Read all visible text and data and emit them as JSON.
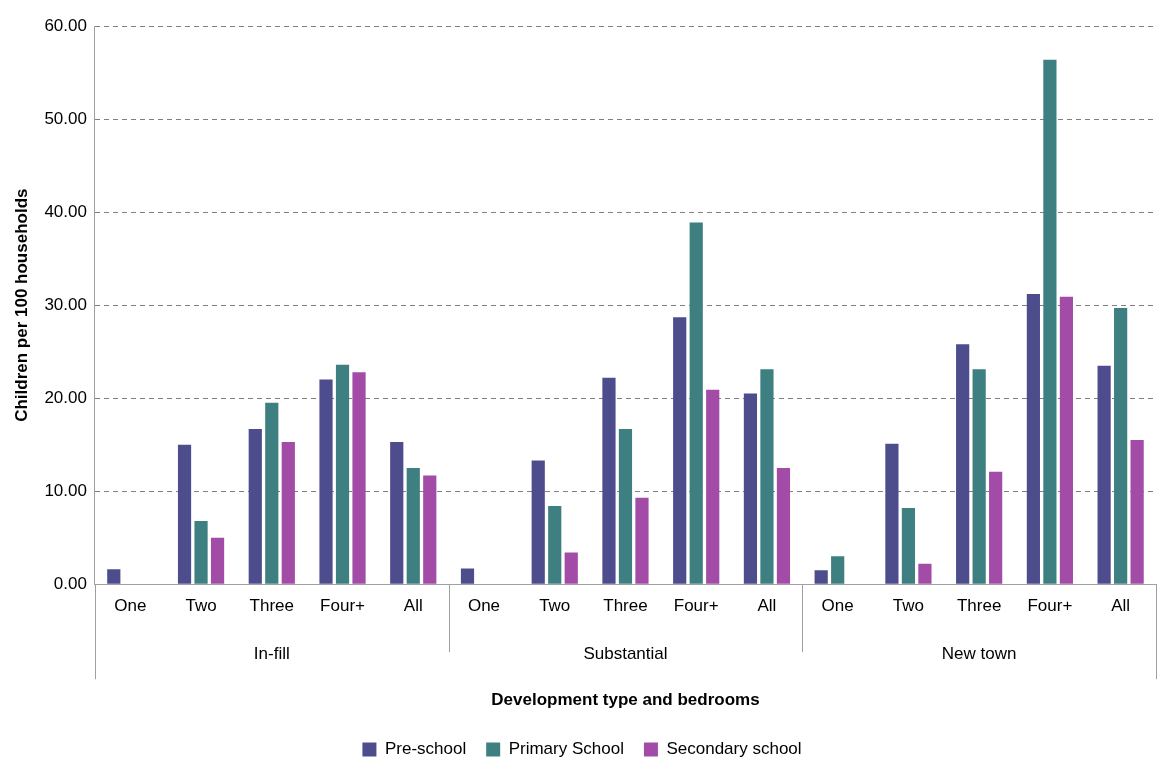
{
  "chart_data": {
    "type": "bar",
    "xlabel": "Development type and bedrooms",
    "ylabel": "Children per 100 households",
    "categories": [
      "One",
      "Two",
      "Three",
      "Four+",
      "All",
      "One",
      "Two",
      "Three",
      "Four+",
      "All",
      "One",
      "Two",
      "Three",
      "Four+",
      "All"
    ],
    "annotations": [
      "In-fill",
      "Substantial",
      "New town"
    ],
    "series": [
      {
        "name": "Pre-school",
        "color": "#4d4d8e",
        "values": [
          1.6,
          15.0,
          16.7,
          22.0,
          15.3,
          1.7,
          13.3,
          22.2,
          28.7,
          20.5,
          1.5,
          15.1,
          25.8,
          31.2,
          23.5
        ]
      },
      {
        "name": "Primary School",
        "color": "#3e8081",
        "values": [
          0,
          6.8,
          19.5,
          23.6,
          12.5,
          0,
          8.4,
          16.7,
          38.9,
          23.1,
          3.0,
          8.2,
          23.1,
          56.4,
          29.7
        ]
      },
      {
        "name": "Secondary school",
        "color": "#a24ca8",
        "values": [
          0,
          5.0,
          15.3,
          22.8,
          11.7,
          0,
          3.4,
          9.3,
          20.9,
          12.5,
          0,
          2.2,
          12.1,
          30.9,
          15.5
        ]
      }
    ],
    "ylim": [
      0,
      60
    ],
    "yticks": [
      {
        "value": 0,
        "label": "0.00"
      },
      {
        "value": 10,
        "label": "10.00"
      },
      {
        "value": 20,
        "label": "20.00"
      },
      {
        "value": 30,
        "label": "30.00"
      },
      {
        "value": 40,
        "label": "40.00"
      },
      {
        "value": 50,
        "label": "50.00"
      },
      {
        "value": 60,
        "label": "60.00"
      }
    ],
    "grid": "y",
    "legend": "bottom"
  }
}
